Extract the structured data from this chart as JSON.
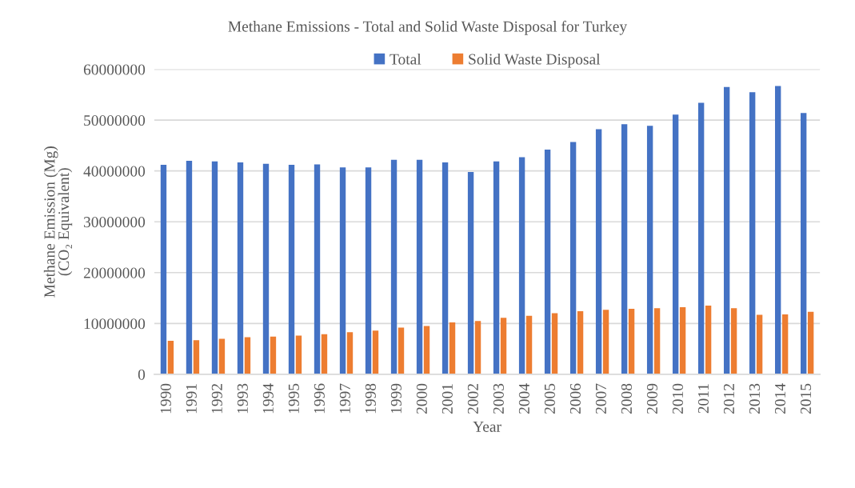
{
  "chart_data": {
    "type": "bar",
    "title": "Methane Emissions - Total and Solid Waste Disposal for Turkey",
    "xlabel": "Year",
    "ylabel": "Methane Emission (Mg)\n(CO₂ Equivalent)",
    "categories": [
      "1990",
      "1991",
      "1992",
      "1993",
      "1994",
      "1995",
      "1996",
      "1997",
      "1998",
      "1999",
      "2000",
      "2001",
      "2002",
      "2003",
      "2004",
      "2005",
      "2006",
      "2007",
      "2008",
      "2009",
      "2010",
      "2011",
      "2012",
      "2013",
      "2014",
      "2015"
    ],
    "series": [
      {
        "name": "Total",
        "color": "#4472c4",
        "values": [
          41200000,
          42000000,
          41900000,
          41700000,
          41400000,
          41200000,
          41300000,
          40700000,
          40700000,
          42200000,
          42200000,
          41700000,
          39800000,
          41900000,
          42700000,
          44200000,
          45700000,
          48200000,
          49200000,
          48900000,
          51100000,
          53400000,
          56500000,
          55500000,
          56700000,
          51400000
        ]
      },
      {
        "name": "Solid Waste Disposal",
        "color": "#ed7d31",
        "values": [
          6600000,
          6700000,
          7000000,
          7300000,
          7400000,
          7600000,
          7900000,
          8300000,
          8600000,
          9200000,
          9500000,
          10200000,
          10500000,
          11100000,
          11500000,
          12000000,
          12400000,
          12700000,
          12900000,
          13000000,
          13200000,
          13500000,
          13000000,
          11700000,
          11800000,
          12300000
        ]
      }
    ],
    "ylim": [
      0,
      60000000
    ],
    "yticks": [
      0,
      10000000,
      20000000,
      30000000,
      40000000,
      50000000,
      60000000
    ],
    "grid": "y",
    "legend": "top"
  }
}
